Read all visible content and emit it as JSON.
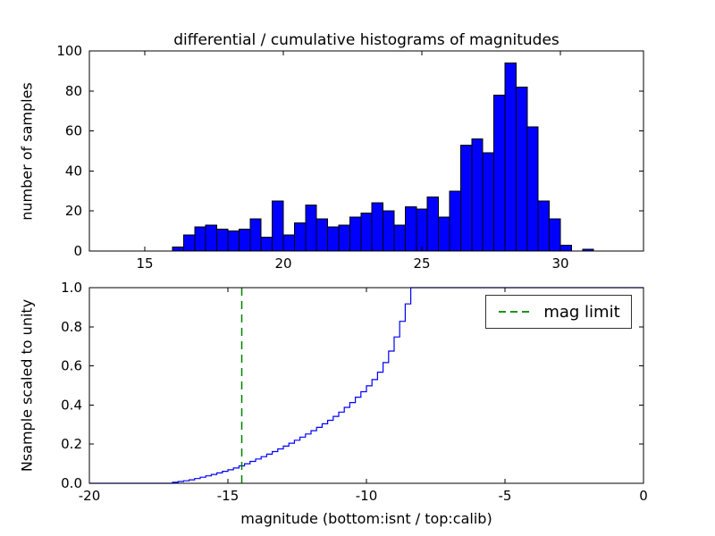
{
  "chart_data": [
    {
      "type": "bar",
      "title": "differential / cumulative histograms of magnitudes",
      "xlabel": "",
      "ylabel": "number of samples",
      "xlim": [
        13,
        33
      ],
      "ylim": [
        0,
        100
      ],
      "xticks": [
        15,
        20,
        25,
        30
      ],
      "xtick_labels": [
        "15",
        "20",
        "25",
        "30"
      ],
      "yticks": [
        0,
        20,
        40,
        60,
        80,
        100
      ],
      "ytick_labels": [
        "0",
        "20",
        "40",
        "60",
        "80",
        "100"
      ],
      "grid": false,
      "bar_color": "#0000ff",
      "bar_edge_color": "#000000",
      "bin_start": 16.0,
      "bin_width": 0.4,
      "counts": [
        2,
        8,
        12,
        13,
        11,
        10,
        11,
        16,
        7,
        25,
        8,
        14,
        23,
        16,
        12,
        13,
        17,
        19,
        24,
        20,
        13,
        22,
        21,
        27,
        17,
        30,
        53,
        56,
        49,
        78,
        94,
        82,
        62,
        25,
        16,
        3,
        0,
        1
      ]
    },
    {
      "type": "line",
      "title": "",
      "xlabel": "magnitude (bottom:isnt / top:calib)",
      "ylabel": "Nsample scaled to unity",
      "xlim": [
        -20,
        0
      ],
      "ylim": [
        0.0,
        1.0
      ],
      "xticks": [
        -20,
        -15,
        -10,
        -5,
        0
      ],
      "xtick_labels": [
        "-20",
        "-15",
        "-10",
        "-5",
        "0"
      ],
      "yticks": [
        0.0,
        0.2,
        0.4,
        0.6,
        0.8,
        1.0
      ],
      "ytick_labels": [
        "0.0",
        "0.2",
        "0.4",
        "0.6",
        "0.8",
        "1.0"
      ],
      "grid": false,
      "line_color": "#0000ff",
      "step_points": [
        [
          -20.0,
          0.0
        ],
        [
          -17.2,
          0.0
        ],
        [
          -17.0,
          0.005
        ],
        [
          -16.8,
          0.009
        ],
        [
          -16.6,
          0.013
        ],
        [
          -16.4,
          0.018
        ],
        [
          -16.2,
          0.024
        ],
        [
          -16.0,
          0.031
        ],
        [
          -15.8,
          0.038
        ],
        [
          -15.6,
          0.045
        ],
        [
          -15.4,
          0.053
        ],
        [
          -15.2,
          0.061
        ],
        [
          -15.0,
          0.069
        ],
        [
          -14.8,
          0.078
        ],
        [
          -14.6,
          0.089
        ],
        [
          -14.4,
          0.1
        ],
        [
          -14.2,
          0.112
        ],
        [
          -14.0,
          0.124
        ],
        [
          -13.8,
          0.136
        ],
        [
          -13.6,
          0.149
        ],
        [
          -13.4,
          0.162
        ],
        [
          -13.2,
          0.176
        ],
        [
          -13.0,
          0.19
        ],
        [
          -12.8,
          0.205
        ],
        [
          -12.6,
          0.22
        ],
        [
          -12.4,
          0.236
        ],
        [
          -12.2,
          0.252
        ],
        [
          -12.0,
          0.269
        ],
        [
          -11.8,
          0.286
        ],
        [
          -11.6,
          0.304
        ],
        [
          -11.4,
          0.322
        ],
        [
          -11.2,
          0.342
        ],
        [
          -11.0,
          0.364
        ],
        [
          -10.8,
          0.388
        ],
        [
          -10.6,
          0.413
        ],
        [
          -10.4,
          0.44
        ],
        [
          -10.2,
          0.468
        ],
        [
          -10.0,
          0.498
        ],
        [
          -9.8,
          0.53
        ],
        [
          -9.6,
          0.568
        ],
        [
          -9.4,
          0.617
        ],
        [
          -9.2,
          0.676
        ],
        [
          -9.0,
          0.748
        ],
        [
          -8.8,
          0.828
        ],
        [
          -8.6,
          0.917
        ],
        [
          -8.4,
          1.0
        ],
        [
          0.0,
          1.0
        ]
      ],
      "mag_limit": {
        "x": -14.5,
        "color": "#008000",
        "style": "dashed",
        "label": "mag limit"
      },
      "legend": {
        "position": "upper right",
        "entries": [
          {
            "label": "mag limit",
            "color": "#008000",
            "dashed": true
          }
        ]
      }
    }
  ]
}
